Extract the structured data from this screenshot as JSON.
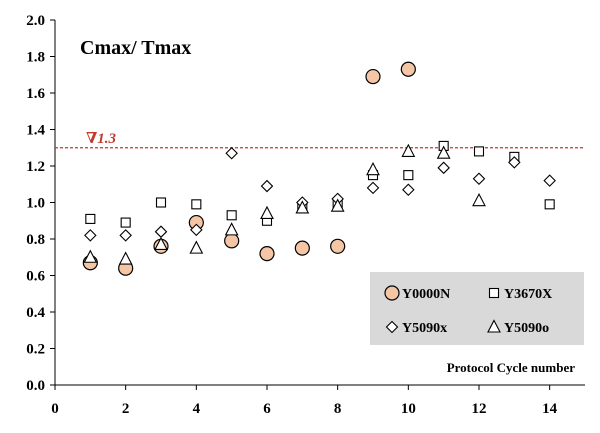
{
  "chart_data": {
    "type": "scatter",
    "title": "Cmax/ Tmax",
    "xlabel": "Protocol Cycle number",
    "ylabel": "",
    "xlim": [
      0,
      15
    ],
    "ylim": [
      0,
      2.0
    ],
    "xticks": [
      "0",
      "2",
      "4",
      "6",
      "8",
      "10",
      "12",
      "14"
    ],
    "yticks": [
      "0.0",
      "0.2",
      "0.4",
      "0.6",
      "0.8",
      "1.0",
      "1.2",
      "1.4",
      "1.6",
      "1.8",
      "2.0"
    ],
    "grid": false,
    "legend_position": "bottom-right",
    "reference_line": {
      "y": 1.3,
      "label": "∇1.3",
      "color": "#c0392b"
    },
    "series": [
      {
        "name": "Y0000N",
        "marker": "circle",
        "fill": "#f5c6a5",
        "stroke": "#000000",
        "x": [
          1,
          2,
          3,
          4,
          5,
          6,
          7,
          8,
          9,
          10
        ],
        "y": [
          0.67,
          0.64,
          0.76,
          0.89,
          0.79,
          0.72,
          0.75,
          0.76,
          1.69,
          1.73
        ]
      },
      {
        "name": "Y3670X",
        "marker": "square",
        "fill": "#ffffff",
        "stroke": "#000000",
        "x": [
          1,
          2,
          3,
          4,
          5,
          6,
          7,
          8,
          9,
          10,
          11,
          12,
          13,
          14
        ],
        "y": [
          0.91,
          0.89,
          1.0,
          0.99,
          0.93,
          0.9,
          0.98,
          0.99,
          1.15,
          1.15,
          1.31,
          1.28,
          1.25,
          0.99
        ]
      },
      {
        "name": "Y5090x",
        "marker": "diamond",
        "fill": "#ffffff",
        "stroke": "#000000",
        "x": [
          1,
          2,
          3,
          4,
          5,
          6,
          7,
          8,
          9,
          10,
          11,
          12,
          13,
          14
        ],
        "y": [
          0.82,
          0.82,
          0.84,
          0.85,
          1.27,
          1.09,
          1.0,
          1.02,
          1.08,
          1.07,
          1.19,
          1.13,
          1.22,
          1.12
        ]
      },
      {
        "name": "Y5090o",
        "marker": "triangle",
        "fill": "#ffffff",
        "stroke": "#000000",
        "x": [
          1,
          2,
          3,
          4,
          5,
          6,
          7,
          8,
          9,
          10,
          11,
          12
        ],
        "y": [
          0.7,
          0.69,
          0.77,
          0.75,
          0.85,
          0.94,
          0.97,
          0.98,
          1.18,
          1.28,
          1.27,
          1.01
        ]
      }
    ]
  }
}
